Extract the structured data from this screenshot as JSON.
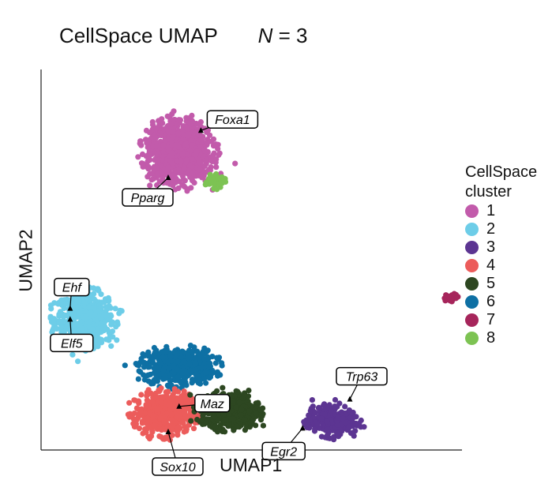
{
  "chart_data": {
    "type": "scatter",
    "title": "CellSpace UMAP",
    "subtitle_prefix": "N",
    "subtitle_value": "= 3",
    "xlabel": "UMAP1",
    "ylabel": "UMAP2",
    "grid": false,
    "legend_position": "right",
    "legend_title": "CellSpace cluster",
    "clusters": [
      {
        "name": "1",
        "color": "#c25bab",
        "center": [
          3.8,
          8.2
        ],
        "spread": [
          1.0,
          0.95
        ]
      },
      {
        "name": "2",
        "color": "#6dcde8",
        "center": [
          1.2,
          3.6
        ],
        "spread": [
          0.9,
          0.8
        ]
      },
      {
        "name": "3",
        "color": "#5c3592",
        "center": [
          8.0,
          0.8
        ],
        "spread": [
          0.75,
          0.45
        ]
      },
      {
        "name": "4",
        "color": "#ec5c5b",
        "center": [
          3.4,
          1.0
        ],
        "spread": [
          0.9,
          0.65
        ]
      },
      {
        "name": "5",
        "color": "#2d4721",
        "center": [
          5.2,
          1.1
        ],
        "spread": [
          0.9,
          0.55
        ]
      },
      {
        "name": "6",
        "color": "#0e70a4",
        "center": [
          3.8,
          2.3
        ],
        "spread": [
          1.1,
          0.55
        ]
      },
      {
        "name": "7",
        "color": "#a6255b",
        "center": [
          11.3,
          4.2
        ],
        "spread": [
          0.25,
          0.1
        ]
      },
      {
        "name": "8",
        "color": "#7dc353",
        "center": [
          4.8,
          7.4
        ],
        "spread": [
          0.3,
          0.2
        ]
      }
    ],
    "annotations": [
      {
        "label": "Foxa1",
        "point": [
          4.4,
          8.8
        ]
      },
      {
        "label": "Pparg",
        "point": [
          3.5,
          7.5
        ]
      },
      {
        "label": "Ehf",
        "point": [
          0.8,
          3.9
        ]
      },
      {
        "label": "Elf5",
        "point": [
          0.8,
          3.6
        ]
      },
      {
        "label": "Maz",
        "point": [
          3.8,
          1.2
        ]
      },
      {
        "label": "Sox10",
        "point": [
          3.5,
          0.5
        ]
      },
      {
        "label": "Egr2",
        "point": [
          7.2,
          0.6
        ]
      },
      {
        "label": "Trp63",
        "point": [
          8.5,
          1.4
        ]
      }
    ]
  }
}
